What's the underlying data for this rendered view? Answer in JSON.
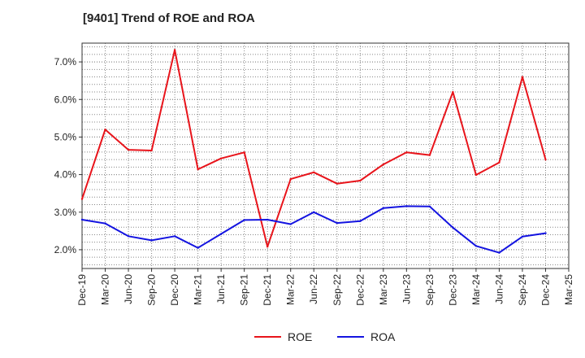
{
  "chart_data": {
    "type": "line",
    "title": "[9401]  Trend of ROE and ROA",
    "xlabel": "",
    "ylabel": "",
    "ylim": [
      1.5,
      7.5
    ],
    "yticks": [
      2.0,
      3.0,
      4.0,
      5.0,
      6.0,
      7.0
    ],
    "ytick_labels": [
      "2.0%",
      "3.0%",
      "4.0%",
      "5.0%",
      "6.0%",
      "7.0%"
    ],
    "x": [
      "Dec-19",
      "Mar-20",
      "Jun-20",
      "Sep-20",
      "Dec-20",
      "Mar-21",
      "Jun-21",
      "Sep-21",
      "Dec-21",
      "Mar-22",
      "Jun-22",
      "Sep-22",
      "Dec-22",
      "Mar-23",
      "Jun-23",
      "Sep-23",
      "Dec-23",
      "Mar-24",
      "Jun-24",
      "Sep-24",
      "Dec-24",
      "Mar-25"
    ],
    "grid": true,
    "legend": "bottom",
    "series": [
      {
        "name": "ROE",
        "color": "#e8141b",
        "values": [
          3.35,
          5.2,
          4.66,
          4.64,
          7.32,
          4.14,
          4.43,
          4.59,
          2.08,
          3.88,
          4.06,
          3.76,
          3.84,
          4.27,
          4.59,
          4.52,
          6.2,
          3.99,
          4.32,
          6.6,
          4.4,
          null
        ]
      },
      {
        "name": "ROA",
        "color": "#1414e0",
        "values": [
          2.8,
          2.7,
          2.36,
          2.25,
          2.36,
          2.05,
          2.42,
          2.79,
          2.8,
          2.68,
          3.0,
          2.71,
          2.76,
          3.11,
          3.16,
          3.15,
          2.59,
          2.1,
          1.92,
          2.35,
          2.44,
          null
        ]
      }
    ]
  }
}
